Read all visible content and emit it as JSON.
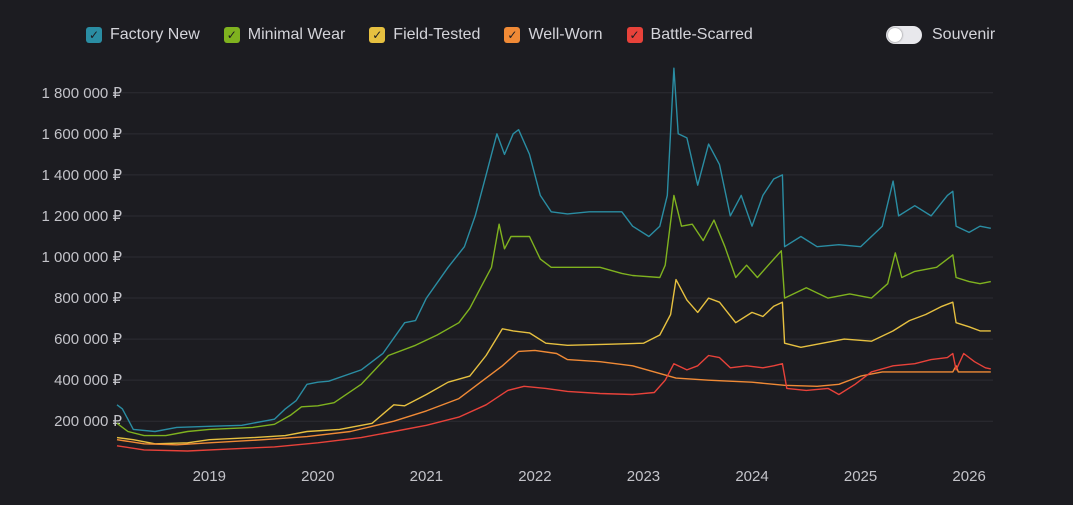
{
  "legend": {
    "items": [
      {
        "key": "fn",
        "label": "Factory New",
        "color": "#2a8da3"
      },
      {
        "key": "mw",
        "label": "Minimal Wear",
        "color": "#7fb21f"
      },
      {
        "key": "ft",
        "label": "Field-Tested",
        "color": "#e6c040"
      },
      {
        "key": "ww",
        "label": "Well-Worn",
        "color": "#f08a36"
      },
      {
        "key": "bs",
        "label": "Battle-Scarred",
        "color": "#e8423a"
      }
    ],
    "check_glyph": "✓"
  },
  "souvenir": {
    "label": "Souvenir",
    "enabled": false
  },
  "chart_data": {
    "type": "line",
    "title": "",
    "xlabel": "",
    "ylabel": "",
    "x_unit": "year",
    "xlim": [
      2018.15,
      2026.22
    ],
    "ylim": [
      50000,
      1950000
    ],
    "x_ticks": [
      2019,
      2020,
      2021,
      2022,
      2023,
      2024,
      2025,
      2026
    ],
    "x_tick_labels": [
      "2019",
      "2020",
      "2021",
      "2022",
      "2023",
      "2024",
      "2025",
      "2026"
    ],
    "y_ticks": [
      200000,
      400000,
      600000,
      800000,
      1000000,
      1200000,
      1400000,
      1600000,
      1800000
    ],
    "y_tick_labels": [
      "200 000 ₽",
      "400 000 ₽",
      "600 000 ₽",
      "800 000 ₽",
      "1 000 000 ₽",
      "1 200 000 ₽",
      "1 400 000 ₽",
      "1 600 000 ₽",
      "1 800 000 ₽"
    ],
    "grid": true,
    "legend_position": "top",
    "series": [
      {
        "name": "Factory New",
        "color": "#2a8da3",
        "points": [
          [
            2018.15,
            280000
          ],
          [
            2018.2,
            260000
          ],
          [
            2018.3,
            160000
          ],
          [
            2018.5,
            150000
          ],
          [
            2018.7,
            170000
          ],
          [
            2019.0,
            175000
          ],
          [
            2019.3,
            180000
          ],
          [
            2019.6,
            210000
          ],
          [
            2019.7,
            260000
          ],
          [
            2019.8,
            300000
          ],
          [
            2019.9,
            380000
          ],
          [
            2020.0,
            390000
          ],
          [
            2020.1,
            395000
          ],
          [
            2020.4,
            450000
          ],
          [
            2020.6,
            530000
          ],
          [
            2020.8,
            680000
          ],
          [
            2020.9,
            690000
          ],
          [
            2021.0,
            800000
          ],
          [
            2021.2,
            950000
          ],
          [
            2021.35,
            1050000
          ],
          [
            2021.45,
            1200000
          ],
          [
            2021.55,
            1400000
          ],
          [
            2021.65,
            1600000
          ],
          [
            2021.72,
            1500000
          ],
          [
            2021.8,
            1600000
          ],
          [
            2021.85,
            1620000
          ],
          [
            2021.95,
            1500000
          ],
          [
            2022.05,
            1300000
          ],
          [
            2022.15,
            1220000
          ],
          [
            2022.3,
            1210000
          ],
          [
            2022.5,
            1220000
          ],
          [
            2022.8,
            1220000
          ],
          [
            2022.9,
            1150000
          ],
          [
            2023.05,
            1100000
          ],
          [
            2023.15,
            1150000
          ],
          [
            2023.22,
            1300000
          ],
          [
            2023.28,
            1920000
          ],
          [
            2023.32,
            1600000
          ],
          [
            2023.4,
            1580000
          ],
          [
            2023.5,
            1350000
          ],
          [
            2023.6,
            1550000
          ],
          [
            2023.7,
            1450000
          ],
          [
            2023.8,
            1200000
          ],
          [
            2023.9,
            1300000
          ],
          [
            2024.0,
            1150000
          ],
          [
            2024.1,
            1300000
          ],
          [
            2024.2,
            1380000
          ],
          [
            2024.28,
            1400000
          ],
          [
            2024.3,
            1050000
          ],
          [
            2024.45,
            1100000
          ],
          [
            2024.6,
            1050000
          ],
          [
            2024.8,
            1060000
          ],
          [
            2025.0,
            1050000
          ],
          [
            2025.2,
            1150000
          ],
          [
            2025.3,
            1370000
          ],
          [
            2025.35,
            1200000
          ],
          [
            2025.5,
            1250000
          ],
          [
            2025.65,
            1200000
          ],
          [
            2025.8,
            1300000
          ],
          [
            2025.85,
            1320000
          ],
          [
            2025.88,
            1150000
          ],
          [
            2026.0,
            1120000
          ],
          [
            2026.1,
            1150000
          ],
          [
            2026.2,
            1140000
          ]
        ]
      },
      {
        "name": "Minimal Wear",
        "color": "#7fb21f",
        "points": [
          [
            2018.15,
            190000
          ],
          [
            2018.25,
            150000
          ],
          [
            2018.4,
            130000
          ],
          [
            2018.6,
            130000
          ],
          [
            2018.8,
            150000
          ],
          [
            2019.0,
            160000
          ],
          [
            2019.4,
            170000
          ],
          [
            2019.6,
            185000
          ],
          [
            2019.75,
            230000
          ],
          [
            2019.85,
            270000
          ],
          [
            2020.0,
            275000
          ],
          [
            2020.15,
            290000
          ],
          [
            2020.4,
            380000
          ],
          [
            2020.65,
            520000
          ],
          [
            2020.9,
            570000
          ],
          [
            2021.1,
            620000
          ],
          [
            2021.3,
            680000
          ],
          [
            2021.4,
            750000
          ],
          [
            2021.5,
            850000
          ],
          [
            2021.6,
            950000
          ],
          [
            2021.67,
            1160000
          ],
          [
            2021.72,
            1040000
          ],
          [
            2021.78,
            1100000
          ],
          [
            2021.95,
            1100000
          ],
          [
            2022.05,
            990000
          ],
          [
            2022.15,
            950000
          ],
          [
            2022.3,
            950000
          ],
          [
            2022.6,
            950000
          ],
          [
            2022.8,
            920000
          ],
          [
            2022.9,
            910000
          ],
          [
            2023.15,
            900000
          ],
          [
            2023.2,
            960000
          ],
          [
            2023.28,
            1300000
          ],
          [
            2023.35,
            1150000
          ],
          [
            2023.45,
            1160000
          ],
          [
            2023.55,
            1080000
          ],
          [
            2023.65,
            1180000
          ],
          [
            2023.75,
            1050000
          ],
          [
            2023.85,
            900000
          ],
          [
            2023.95,
            960000
          ],
          [
            2024.05,
            900000
          ],
          [
            2024.15,
            960000
          ],
          [
            2024.27,
            1030000
          ],
          [
            2024.3,
            800000
          ],
          [
            2024.5,
            850000
          ],
          [
            2024.7,
            800000
          ],
          [
            2024.9,
            820000
          ],
          [
            2025.1,
            800000
          ],
          [
            2025.25,
            870000
          ],
          [
            2025.32,
            1020000
          ],
          [
            2025.38,
            900000
          ],
          [
            2025.5,
            930000
          ],
          [
            2025.7,
            950000
          ],
          [
            2025.8,
            990000
          ],
          [
            2025.85,
            1010000
          ],
          [
            2025.88,
            900000
          ],
          [
            2026.0,
            880000
          ],
          [
            2026.1,
            870000
          ],
          [
            2026.2,
            880000
          ]
        ]
      },
      {
        "name": "Field-Tested",
        "color": "#e6c040",
        "points": [
          [
            2018.15,
            120000
          ],
          [
            2018.3,
            110000
          ],
          [
            2018.5,
            90000
          ],
          [
            2018.8,
            95000
          ],
          [
            2019.0,
            110000
          ],
          [
            2019.4,
            120000
          ],
          [
            2019.7,
            130000
          ],
          [
            2019.9,
            150000
          ],
          [
            2020.2,
            160000
          ],
          [
            2020.5,
            190000
          ],
          [
            2020.7,
            280000
          ],
          [
            2020.8,
            275000
          ],
          [
            2021.0,
            330000
          ],
          [
            2021.2,
            390000
          ],
          [
            2021.4,
            420000
          ],
          [
            2021.55,
            520000
          ],
          [
            2021.7,
            650000
          ],
          [
            2021.8,
            640000
          ],
          [
            2021.95,
            630000
          ],
          [
            2022.1,
            580000
          ],
          [
            2022.3,
            570000
          ],
          [
            2022.7,
            575000
          ],
          [
            2023.0,
            580000
          ],
          [
            2023.15,
            620000
          ],
          [
            2023.25,
            720000
          ],
          [
            2023.3,
            890000
          ],
          [
            2023.4,
            790000
          ],
          [
            2023.5,
            730000
          ],
          [
            2023.6,
            800000
          ],
          [
            2023.7,
            780000
          ],
          [
            2023.85,
            680000
          ],
          [
            2024.0,
            730000
          ],
          [
            2024.1,
            710000
          ],
          [
            2024.2,
            760000
          ],
          [
            2024.28,
            780000
          ],
          [
            2024.3,
            580000
          ],
          [
            2024.45,
            560000
          ],
          [
            2024.65,
            580000
          ],
          [
            2024.85,
            600000
          ],
          [
            2025.1,
            590000
          ],
          [
            2025.3,
            640000
          ],
          [
            2025.45,
            690000
          ],
          [
            2025.6,
            720000
          ],
          [
            2025.75,
            760000
          ],
          [
            2025.85,
            780000
          ],
          [
            2025.88,
            680000
          ],
          [
            2026.0,
            660000
          ],
          [
            2026.1,
            640000
          ],
          [
            2026.2,
            640000
          ]
        ]
      },
      {
        "name": "Well-Worn",
        "color": "#f08a36",
        "points": [
          [
            2018.15,
            110000
          ],
          [
            2018.4,
            90000
          ],
          [
            2018.7,
            85000
          ],
          [
            2019.0,
            95000
          ],
          [
            2019.5,
            110000
          ],
          [
            2019.9,
            125000
          ],
          [
            2020.3,
            150000
          ],
          [
            2020.7,
            200000
          ],
          [
            2021.0,
            250000
          ],
          [
            2021.3,
            310000
          ],
          [
            2021.5,
            390000
          ],
          [
            2021.7,
            470000
          ],
          [
            2021.85,
            540000
          ],
          [
            2022.0,
            545000
          ],
          [
            2022.2,
            530000
          ],
          [
            2022.3,
            500000
          ],
          [
            2022.6,
            490000
          ],
          [
            2022.9,
            470000
          ],
          [
            2023.1,
            440000
          ],
          [
            2023.3,
            410000
          ],
          [
            2023.6,
            400000
          ],
          [
            2024.0,
            390000
          ],
          [
            2024.3,
            375000
          ],
          [
            2024.6,
            370000
          ],
          [
            2024.8,
            380000
          ],
          [
            2025.0,
            420000
          ],
          [
            2025.2,
            440000
          ],
          [
            2025.5,
            440000
          ],
          [
            2025.85,
            440000
          ],
          [
            2025.88,
            470000
          ],
          [
            2025.9,
            440000
          ],
          [
            2026.2,
            440000
          ]
        ]
      },
      {
        "name": "Battle-Scarred",
        "color": "#e8423a",
        "points": [
          [
            2018.15,
            80000
          ],
          [
            2018.4,
            60000
          ],
          [
            2018.8,
            55000
          ],
          [
            2019.2,
            65000
          ],
          [
            2019.6,
            75000
          ],
          [
            2020.0,
            95000
          ],
          [
            2020.4,
            120000
          ],
          [
            2020.7,
            150000
          ],
          [
            2021.0,
            180000
          ],
          [
            2021.3,
            220000
          ],
          [
            2021.55,
            280000
          ],
          [
            2021.75,
            350000
          ],
          [
            2021.9,
            370000
          ],
          [
            2022.1,
            360000
          ],
          [
            2022.3,
            345000
          ],
          [
            2022.6,
            335000
          ],
          [
            2022.9,
            330000
          ],
          [
            2023.1,
            340000
          ],
          [
            2023.2,
            400000
          ],
          [
            2023.28,
            480000
          ],
          [
            2023.4,
            450000
          ],
          [
            2023.5,
            470000
          ],
          [
            2023.6,
            520000
          ],
          [
            2023.7,
            510000
          ],
          [
            2023.8,
            460000
          ],
          [
            2023.95,
            470000
          ],
          [
            2024.1,
            460000
          ],
          [
            2024.2,
            470000
          ],
          [
            2024.28,
            480000
          ],
          [
            2024.32,
            360000
          ],
          [
            2024.5,
            350000
          ],
          [
            2024.7,
            360000
          ],
          [
            2024.8,
            330000
          ],
          [
            2024.95,
            380000
          ],
          [
            2025.1,
            440000
          ],
          [
            2025.3,
            470000
          ],
          [
            2025.5,
            480000
          ],
          [
            2025.65,
            500000
          ],
          [
            2025.8,
            510000
          ],
          [
            2025.85,
            530000
          ],
          [
            2025.88,
            450000
          ],
          [
            2025.95,
            530000
          ],
          [
            2026.05,
            490000
          ],
          [
            2026.15,
            460000
          ],
          [
            2026.2,
            455000
          ]
        ]
      }
    ]
  }
}
